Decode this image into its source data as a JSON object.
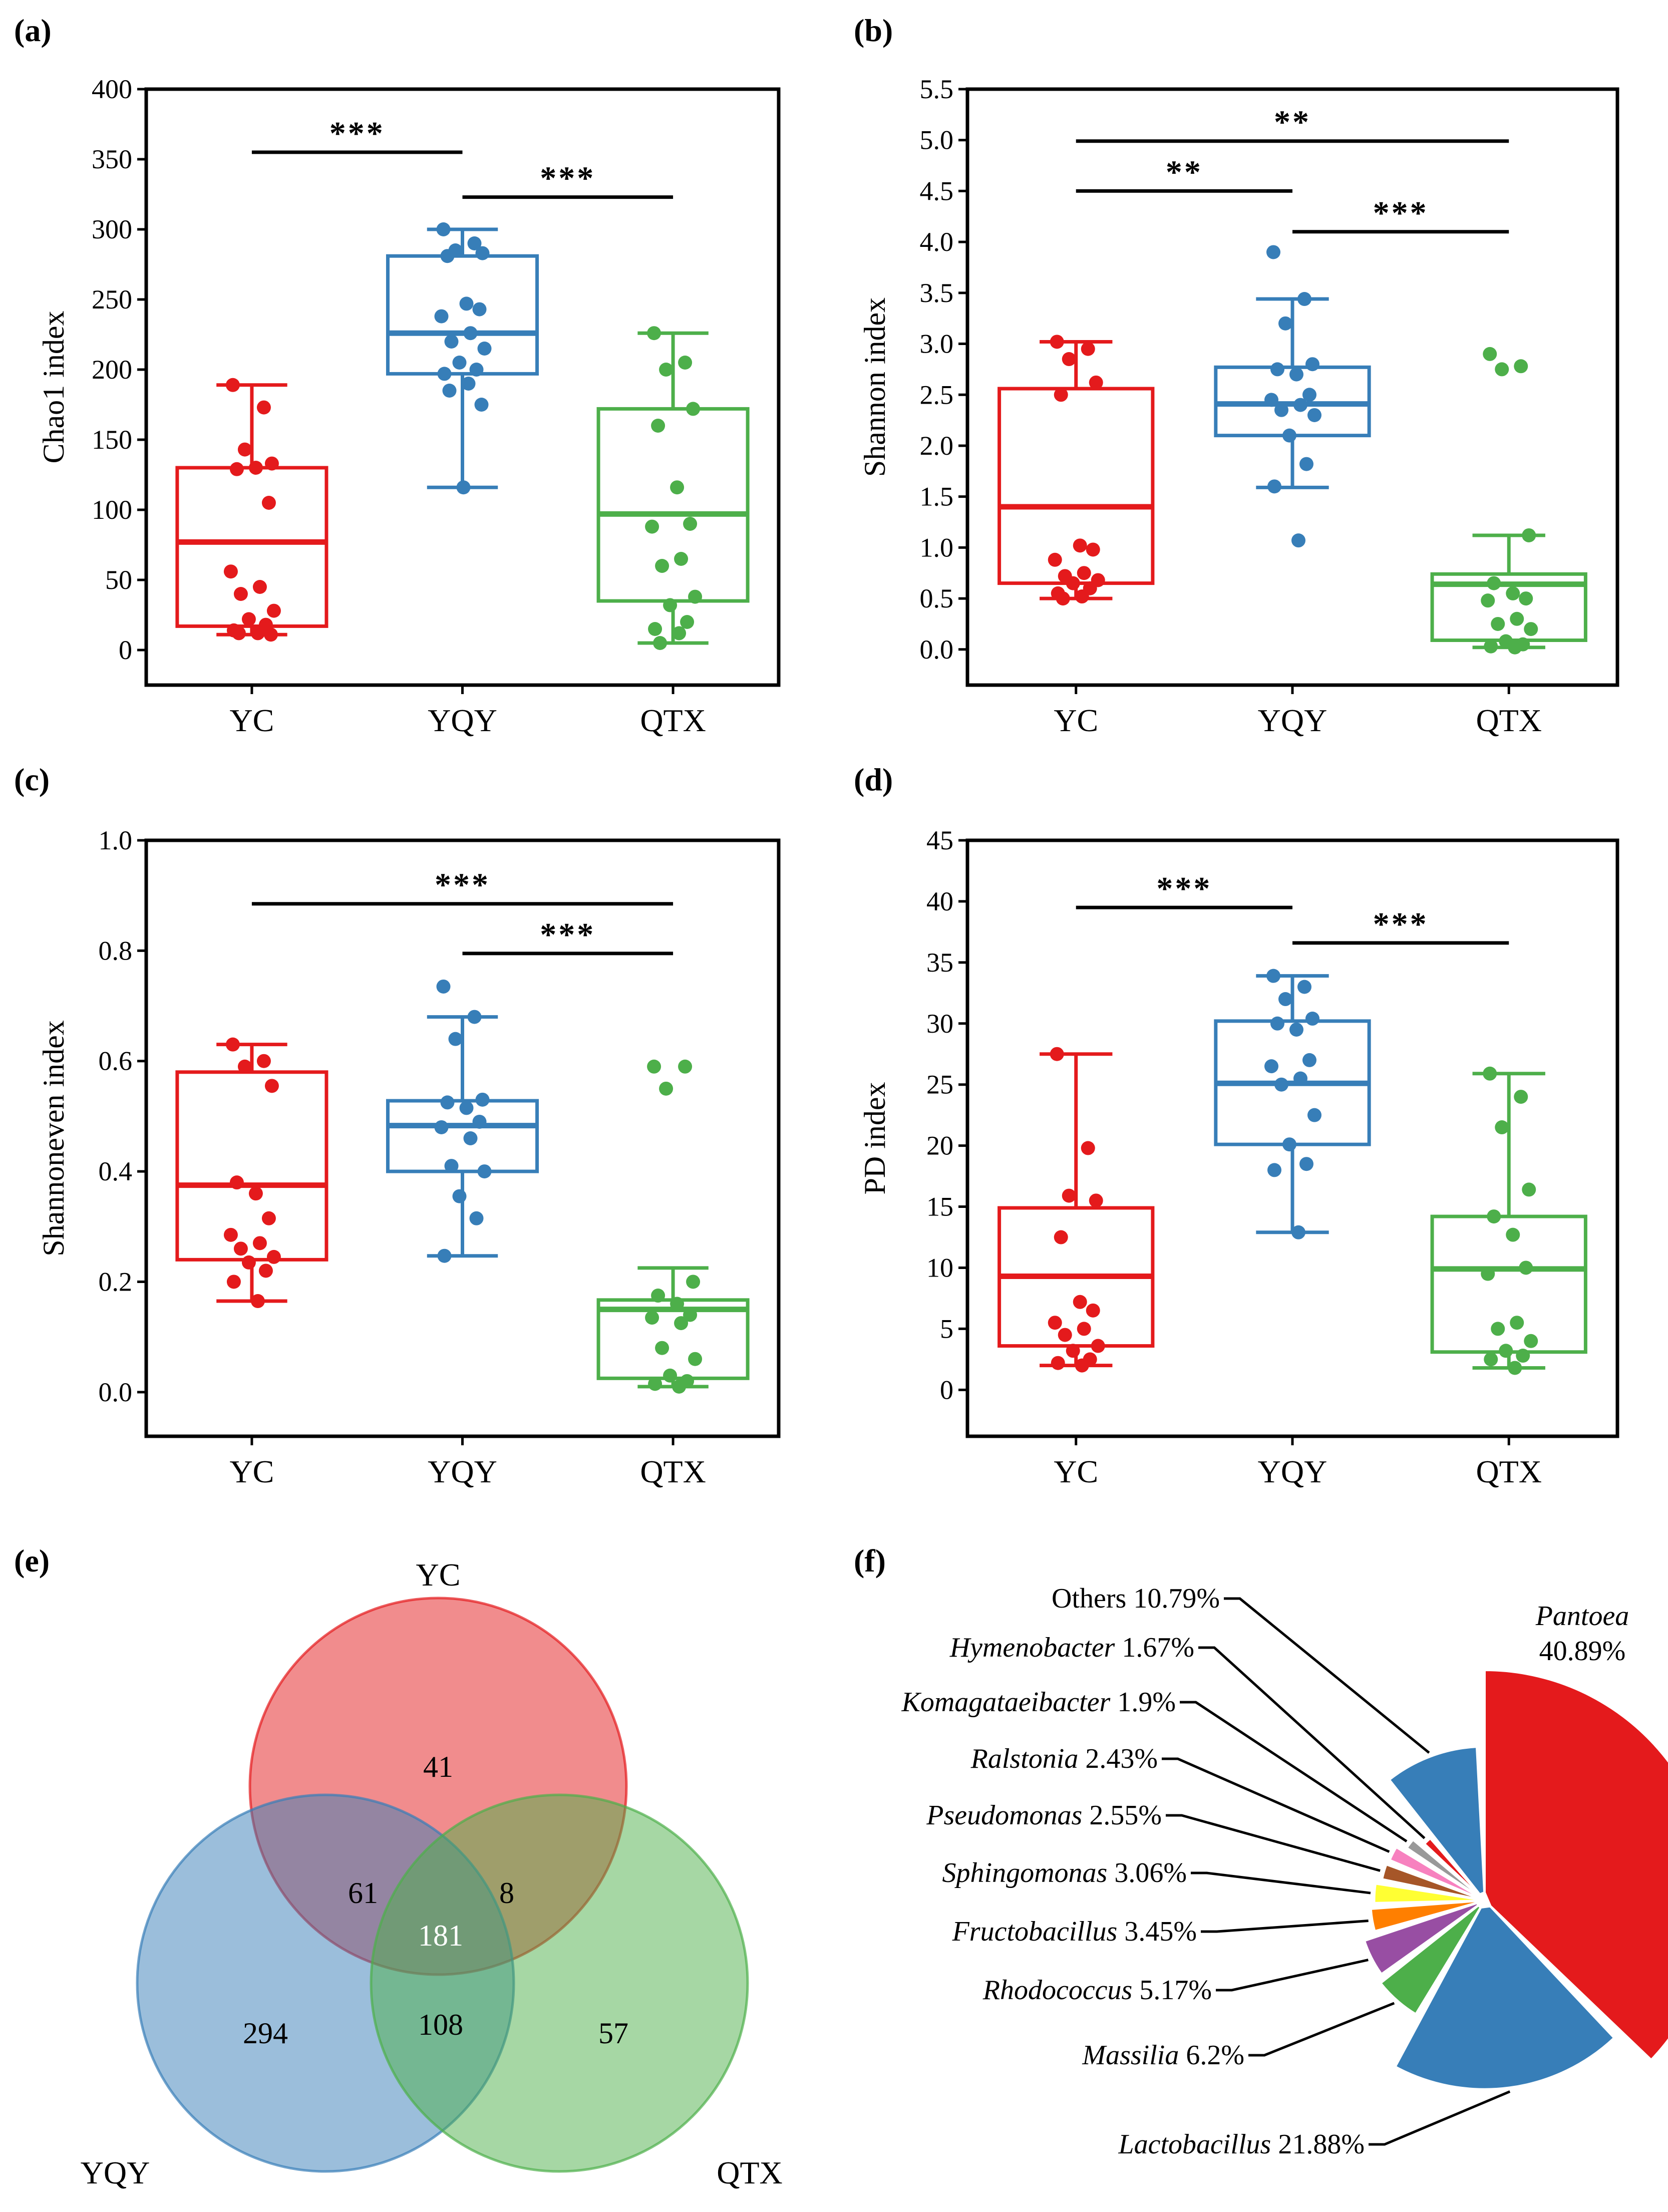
{
  "panel_labels": [
    "(a)",
    "(b)",
    "(c)",
    "(d)",
    "(e)",
    "(f)"
  ],
  "colors": {
    "YC": "#e41a1c",
    "YQY": "#377eb8",
    "QTX": "#4daf4a"
  },
  "chart_data": [
    {
      "type": "box",
      "panel": "(a)",
      "ylabel": "Chao1 index",
      "categories": [
        "YC",
        "YQY",
        "QTX"
      ],
      "ylim": [
        -25,
        400
      ],
      "yticks": [
        0,
        50,
        100,
        150,
        200,
        250,
        300,
        350,
        400
      ],
      "boxes": [
        {
          "min": 11,
          "q1": 17,
          "median": 77,
          "q3": 130,
          "max": 189
        },
        {
          "min": 116,
          "q1": 197,
          "median": 226,
          "q3": 281,
          "max": 300
        },
        {
          "min": 5,
          "q1": 35,
          "median": 97,
          "q3": 172,
          "max": 226
        }
      ],
      "points": [
        [
          189,
          173,
          143,
          133,
          129,
          130,
          105,
          56,
          45,
          40,
          28,
          22,
          18,
          14,
          12,
          12,
          11
        ],
        [
          300,
          290,
          285,
          283,
          281,
          247,
          243,
          238,
          226,
          220,
          215,
          205,
          200,
          197,
          190,
          185,
          175,
          116
        ],
        [
          226,
          205,
          200,
          172,
          160,
          116,
          90,
          88,
          65,
          60,
          38,
          32,
          20,
          15,
          12,
          5
        ]
      ],
      "significance": [
        {
          "from": 0,
          "to": 1,
          "level": 355,
          "label": "***"
        },
        {
          "from": 1,
          "to": 2,
          "level": 323,
          "label": "***"
        }
      ]
    },
    {
      "type": "box",
      "panel": "(b)",
      "ylabel": "Shannon index",
      "categories": [
        "YC",
        "YQY",
        "QTX"
      ],
      "ylim": [
        -0.35,
        5.5
      ],
      "yticks": [
        "0.0",
        "0.5",
        "1.0",
        "1.5",
        "2.0",
        "2.5",
        "3.0",
        "3.5",
        "4.0",
        "4.5",
        "5.0",
        "5.5"
      ],
      "boxes": [
        {
          "min": 0.5,
          "q1": 0.65,
          "median": 1.4,
          "q3": 2.56,
          "max": 3.02
        },
        {
          "min": 1.59,
          "q1": 2.1,
          "median": 2.41,
          "q3": 2.77,
          "max": 3.44
        },
        {
          "min": 0.02,
          "q1": 0.09,
          "median": 0.64,
          "q3": 0.74,
          "max": 1.12
        }
      ],
      "points": [
        [
          3.02,
          2.95,
          2.85,
          2.62,
          2.5,
          1.02,
          0.98,
          0.88,
          0.75,
          0.72,
          0.68,
          0.65,
          0.6,
          0.55,
          0.52,
          0.5
        ],
        [
          3.9,
          3.44,
          3.2,
          2.8,
          2.75,
          2.7,
          2.5,
          2.45,
          2.4,
          2.35,
          2.3,
          2.1,
          1.82,
          1.6,
          1.07
        ],
        [
          2.9,
          2.78,
          2.75,
          1.12,
          0.65,
          0.55,
          0.5,
          0.48,
          0.3,
          0.25,
          0.2,
          0.08,
          0.05,
          0.03,
          0.02
        ]
      ],
      "significance": [
        {
          "from": 0,
          "to": 2,
          "level": 4.99,
          "label": "**"
        },
        {
          "from": 0,
          "to": 1,
          "level": 4.5,
          "label": "**"
        },
        {
          "from": 1,
          "to": 2,
          "level": 4.1,
          "label": "***"
        }
      ]
    },
    {
      "type": "box",
      "panel": "(c)",
      "ylabel": "Shannoneven index",
      "categories": [
        "YC",
        "YQY",
        "QTX"
      ],
      "ylim": [
        -0.08,
        1.0
      ],
      "yticks": [
        "0.0",
        "0.2",
        "0.4",
        "0.6",
        "0.8",
        "1.0"
      ],
      "boxes": [
        {
          "min": 0.165,
          "q1": 0.24,
          "median": 0.375,
          "q3": 0.58,
          "max": 0.63
        },
        {
          "min": 0.247,
          "q1": 0.4,
          "median": 0.483,
          "q3": 0.528,
          "max": 0.68
        },
        {
          "min": 0.01,
          "q1": 0.025,
          "median": 0.15,
          "q3": 0.167,
          "max": 0.225
        }
      ],
      "points": [
        [
          0.63,
          0.6,
          0.59,
          0.555,
          0.38,
          0.36,
          0.315,
          0.285,
          0.27,
          0.26,
          0.245,
          0.235,
          0.22,
          0.2,
          0.165
        ],
        [
          0.735,
          0.68,
          0.64,
          0.53,
          0.525,
          0.515,
          0.49,
          0.48,
          0.46,
          0.41,
          0.4,
          0.355,
          0.315,
          0.247
        ],
        [
          0.59,
          0.59,
          0.55,
          0.2,
          0.175,
          0.16,
          0.14,
          0.135,
          0.125,
          0.08,
          0.06,
          0.03,
          0.02,
          0.015,
          0.01
        ]
      ],
      "significance": [
        {
          "from": 0,
          "to": 2,
          "level": 0.885,
          "label": "***"
        },
        {
          "from": 1,
          "to": 2,
          "level": 0.795,
          "label": "***"
        }
      ]
    },
    {
      "type": "box",
      "panel": "(d)",
      "ylabel": "PD index",
      "categories": [
        "YC",
        "YQY",
        "QTX"
      ],
      "ylim": [
        -3.8,
        45
      ],
      "yticks": [
        0,
        5,
        10,
        15,
        20,
        25,
        30,
        35,
        40,
        45
      ],
      "boxes": [
        {
          "min": 2,
          "q1": 3.6,
          "median": 9.3,
          "q3": 14.9,
          "max": 27.5
        },
        {
          "min": 12.9,
          "q1": 20.1,
          "median": 25.1,
          "q3": 30.2,
          "max": 33.9
        },
        {
          "min": 1.8,
          "q1": 3.1,
          "median": 9.9,
          "q3": 14.2,
          "max": 25.9
        }
      ],
      "points": [
        [
          27.5,
          19.8,
          15.9,
          15.5,
          12.5,
          7.2,
          6.5,
          5.5,
          5.0,
          4.5,
          3.6,
          3.2,
          2.5,
          2.2,
          2.0
        ],
        [
          33.9,
          33.0,
          32.0,
          30.4,
          30.0,
          29.5,
          27.0,
          26.5,
          25.5,
          25.0,
          22.5,
          20.1,
          18.5,
          18.0,
          12.9
        ],
        [
          25.9,
          24.0,
          21.5,
          16.4,
          14.2,
          12.7,
          10.0,
          9.5,
          5.5,
          5.0,
          4.0,
          3.2,
          2.8,
          2.5,
          1.8
        ]
      ],
      "significance": [
        {
          "from": 0,
          "to": 1,
          "level": 39.5,
          "label": "***"
        },
        {
          "from": 1,
          "to": 2,
          "level": 36.6,
          "label": "***"
        }
      ]
    },
    {
      "type": "venn",
      "panel": "(e)",
      "sets": [
        "YC",
        "YQY",
        "QTX"
      ],
      "regions": {
        "YC_only": 41,
        "YQY_only": 294,
        "QTX_only": 57,
        "YC_YQY": 61,
        "YC_QTX": 8,
        "YQY_QTX": 108,
        "all": 181
      }
    },
    {
      "type": "pie",
      "panel": "(f)",
      "slices": [
        {
          "name": "Pantoea",
          "value": 40.89,
          "pct": "40.89%",
          "color": "#e41a1c"
        },
        {
          "name": "Lactobacillus",
          "value": 21.88,
          "pct": "21.88%",
          "color": "#377eb8"
        },
        {
          "name": "Massilia",
          "value": 6.2,
          "pct": "6.2%",
          "color": "#4daf4a"
        },
        {
          "name": "Rhodococcus",
          "value": 5.17,
          "pct": "5.17%",
          "color": "#984ea3"
        },
        {
          "name": "Fructobacillus",
          "value": 3.45,
          "pct": "3.45%",
          "color": "#ff7f00"
        },
        {
          "name": "Sphingomonas",
          "value": 3.06,
          "pct": "3.06%",
          "color": "#ffff33"
        },
        {
          "name": "Pseudomonas",
          "value": 2.55,
          "pct": "2.55%",
          "color": "#a65628"
        },
        {
          "name": "Ralstonia",
          "value": 2.43,
          "pct": "2.43%",
          "color": "#f781bf"
        },
        {
          "name": "Komagataeibacter",
          "value": 1.9,
          "pct": "1.9%",
          "color": "#999999"
        },
        {
          "name": "Hymenobacter",
          "value": 1.67,
          "pct": "1.67%",
          "color": "#e41a1c"
        },
        {
          "name": "Others",
          "value": 10.79,
          "pct": "10.79%",
          "color": "#377eb8",
          "italic": false
        }
      ]
    }
  ]
}
